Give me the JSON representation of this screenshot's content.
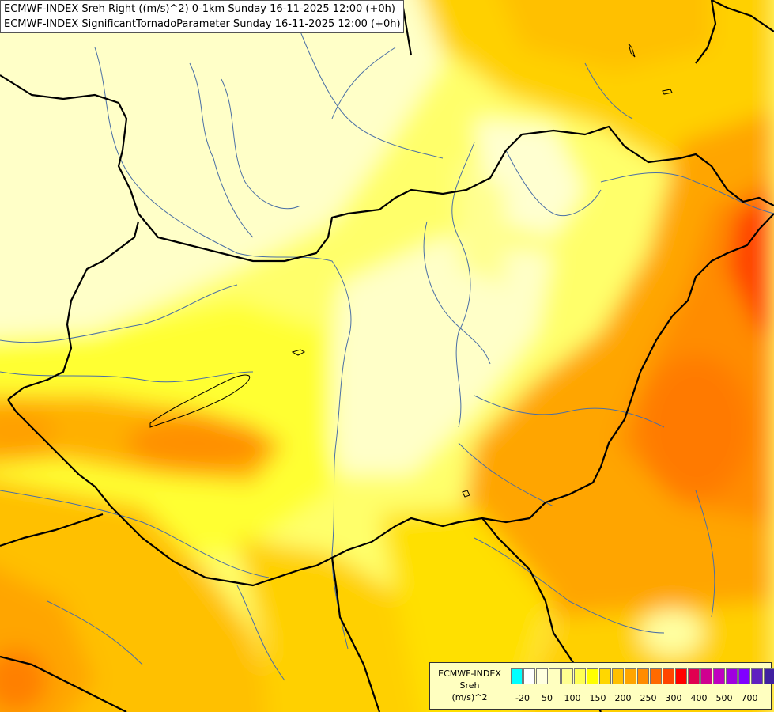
{
  "header": {
    "line1": "ECMWF-INDEX Sreh Right ((m/s)^2) 0-1km Sunday 16-11-2025 12:00 (+0h)",
    "line2": "ECMWF-INDEX SignificantTornadoParameter Sunday 16-11-2025 12:00 (+0h)"
  },
  "legend": {
    "model": "ECMWF-INDEX",
    "variable": "Sreh",
    "unit": "(m/s)^2",
    "colors": [
      "#00ffff",
      "#ffffff",
      "#ffffe0",
      "#ffffc0",
      "#ffff90",
      "#ffff55",
      "#ffff00",
      "#ffd700",
      "#ffc000",
      "#ffa500",
      "#ff8c00",
      "#ff6a00",
      "#ff4500",
      "#ff0000",
      "#e00050",
      "#d00090",
      "#c000c0",
      "#a000e0",
      "#8000ff",
      "#6020c0",
      "#4020a0",
      "#000080"
    ],
    "ticks": [
      "-20",
      "50",
      "100",
      "150",
      "200",
      "250",
      "300",
      "400",
      "500",
      "700"
    ]
  },
  "map_colors": {
    "pale": "#ffffc8",
    "light": "#ffff90",
    "yellow": "#ffff30",
    "gold": "#ffd700",
    "orange": "#ffa500",
    "dark_orange": "#ff8c00",
    "red_orange": "#ff4500",
    "border": "#000000",
    "river": "#4a6fa5"
  }
}
